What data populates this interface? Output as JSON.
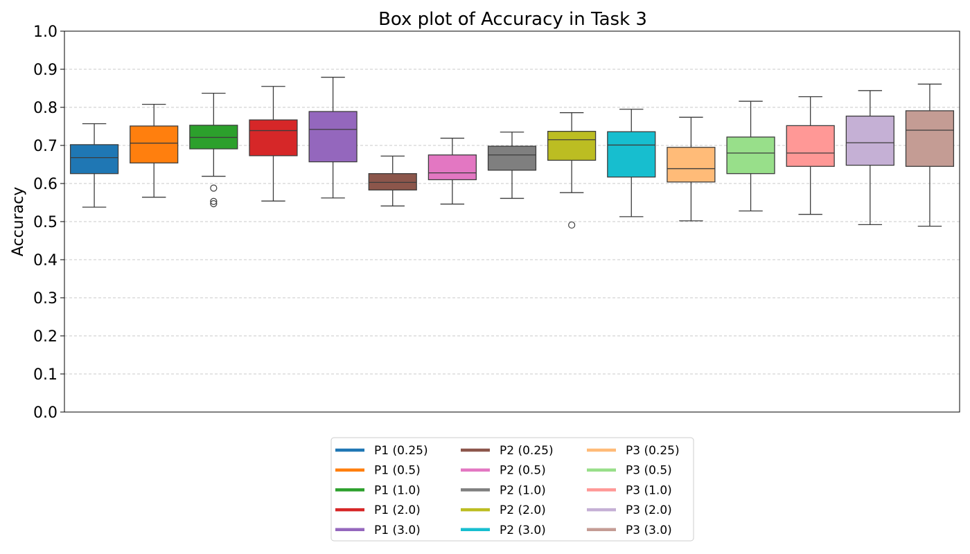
{
  "chart_data": {
    "type": "box",
    "title": "Box plot of Accuracy in Task 3",
    "xlabel": "",
    "ylabel": "Accuracy",
    "ylim": [
      0.0,
      1.0
    ],
    "yticks": [
      "0.0",
      "0.1",
      "0.2",
      "0.3",
      "0.4",
      "0.5",
      "0.6",
      "0.7",
      "0.8",
      "0.9",
      "1.0"
    ],
    "grid": "y-dashed",
    "legend_position": "bottom-center",
    "legend_columns": 3,
    "series": [
      {
        "name": "P1 (0.25)",
        "color": "#1f77b4",
        "min": 0.538,
        "q1": 0.626,
        "median": 0.668,
        "q3": 0.702,
        "max": 0.757,
        "outliers": []
      },
      {
        "name": "P1 (0.5)",
        "color": "#ff7f0e",
        "min": 0.564,
        "q1": 0.654,
        "median": 0.706,
        "q3": 0.751,
        "max": 0.808,
        "outliers": []
      },
      {
        "name": "P1 (1.0)",
        "color": "#2ca02c",
        "min": 0.619,
        "q1": 0.691,
        "median": 0.721,
        "q3": 0.753,
        "max": 0.837,
        "outliers": [
          0.588,
          0.553,
          0.547
        ]
      },
      {
        "name": "P1 (2.0)",
        "color": "#d62728",
        "min": 0.554,
        "q1": 0.673,
        "median": 0.739,
        "q3": 0.767,
        "max": 0.855,
        "outliers": []
      },
      {
        "name": "P1 (3.0)",
        "color": "#9467bd",
        "min": 0.562,
        "q1": 0.657,
        "median": 0.742,
        "q3": 0.789,
        "max": 0.879,
        "outliers": []
      },
      {
        "name": "P2 (0.25)",
        "color": "#8c564b",
        "min": 0.541,
        "q1": 0.583,
        "median": 0.603,
        "q3": 0.626,
        "max": 0.672,
        "outliers": []
      },
      {
        "name": "P2 (0.5)",
        "color": "#e377c2",
        "min": 0.546,
        "q1": 0.61,
        "median": 0.628,
        "q3": 0.675,
        "max": 0.719,
        "outliers": []
      },
      {
        "name": "P2 (1.0)",
        "color": "#7f7f7f",
        "min": 0.561,
        "q1": 0.635,
        "median": 0.675,
        "q3": 0.698,
        "max": 0.735,
        "outliers": []
      },
      {
        "name": "P2 (2.0)",
        "color": "#bcbd22",
        "min": 0.576,
        "q1": 0.661,
        "median": 0.715,
        "q3": 0.737,
        "max": 0.786,
        "outliers": [
          0.491
        ]
      },
      {
        "name": "P2 (3.0)",
        "color": "#17becf",
        "min": 0.513,
        "q1": 0.617,
        "median": 0.701,
        "q3": 0.736,
        "max": 0.795,
        "outliers": []
      },
      {
        "name": "P3 (0.25)",
        "color": "#ffbb78",
        "min": 0.502,
        "q1": 0.604,
        "median": 0.639,
        "q3": 0.695,
        "max": 0.774,
        "outliers": []
      },
      {
        "name": "P3 (0.5)",
        "color": "#98df8a",
        "min": 0.528,
        "q1": 0.626,
        "median": 0.68,
        "q3": 0.722,
        "max": 0.816,
        "outliers": []
      },
      {
        "name": "P3 (1.0)",
        "color": "#ff9896",
        "min": 0.519,
        "q1": 0.645,
        "median": 0.68,
        "q3": 0.752,
        "max": 0.828,
        "outliers": []
      },
      {
        "name": "P3 (2.0)",
        "color": "#c5b0d5",
        "min": 0.492,
        "q1": 0.648,
        "median": 0.707,
        "q3": 0.777,
        "max": 0.844,
        "outliers": []
      },
      {
        "name": "P3 (3.0)",
        "color": "#c49c94",
        "min": 0.488,
        "q1": 0.645,
        "median": 0.74,
        "q3": 0.791,
        "max": 0.861,
        "outliers": []
      }
    ]
  }
}
